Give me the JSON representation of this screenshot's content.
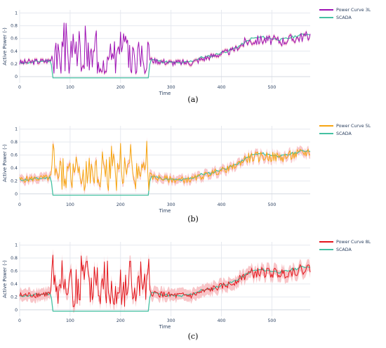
{
  "colors": {
    "scada": "#45c1a2",
    "band_3L": "#f2a5b9",
    "line_3L": "#9e12b4",
    "band_5L": "#f7b3b8",
    "line_5L": "#f6a512",
    "band_8L": "#f5b1b6",
    "line_8L": "#e3161c"
  },
  "chart_data": [
    {
      "type": "line",
      "caption": "(a)",
      "xlabel": "Time",
      "ylabel": "Active Power (-)",
      "xlim": [
        0,
        576
      ],
      "ylim": [
        -0.1,
        1.05
      ],
      "x_ticks": [
        0,
        100,
        200,
        300,
        400,
        500
      ],
      "y_ticks": [
        0.2,
        0.4,
        0.6,
        0.8,
        1
      ],
      "y_tick_labels": [
        "0.2",
        "0.4",
        "0.6",
        "0.8",
        "1"
      ],
      "zero_tick_label": "0",
      "grid": true,
      "legend_position": "top-right",
      "series": [
        {
          "name": "Power Curve 3L",
          "key": "3L",
          "seed": 3
        },
        {
          "name": "SCADA",
          "key": "scada"
        }
      ]
    },
    {
      "type": "line",
      "caption": "(b)",
      "xlabel": "Time",
      "ylabel": "Active Power (-)",
      "xlim": [
        0,
        576
      ],
      "ylim": [
        -0.1,
        1.05
      ],
      "x_ticks": [
        0,
        100,
        200,
        300,
        400,
        500
      ],
      "y_ticks": [
        0.2,
        0.4,
        0.6,
        0.8,
        1
      ],
      "y_tick_labels": [
        "0.2",
        "0.4",
        "0.6",
        "0.8",
        "1"
      ],
      "zero_tick_label": "0",
      "grid": true,
      "legend_position": "top-right",
      "series": [
        {
          "name": "Power Curve 5L",
          "key": "5L",
          "seed": 5
        },
        {
          "name": "SCADA",
          "key": "scada"
        }
      ]
    },
    {
      "type": "line",
      "caption": "(c)",
      "xlabel": "Time",
      "ylabel": "Active Power (-)",
      "xlim": [
        0,
        576
      ],
      "ylim": [
        -0.1,
        1.05
      ],
      "x_ticks": [
        0,
        100,
        200,
        300,
        400,
        500
      ],
      "y_ticks": [
        0.2,
        0.4,
        0.6,
        0.8,
        1
      ],
      "y_tick_labels": [
        "0.2",
        "0.4",
        "0.6",
        "0.8",
        "1"
      ],
      "zero_tick_label": "0",
      "grid": true,
      "legend_position": "top-right",
      "series": [
        {
          "name": "Power Curve 8L",
          "key": "8L",
          "seed": 8
        },
        {
          "name": "SCADA",
          "key": "scada"
        }
      ]
    }
  ],
  "scada_profile": {
    "x": [
      0,
      20,
      40,
      60,
      63,
      66,
      255,
      258,
      261,
      280,
      300,
      320,
      340,
      360,
      380,
      400,
      420,
      440,
      460,
      480,
      500,
      520,
      540,
      560,
      576
    ],
    "y": [
      0.22,
      0.22,
      0.24,
      0.25,
      0.2,
      -0.02,
      -0.02,
      0.2,
      0.27,
      0.24,
      0.22,
      0.21,
      0.24,
      0.3,
      0.32,
      0.38,
      0.42,
      0.5,
      0.6,
      0.62,
      0.6,
      0.58,
      0.62,
      0.66,
      0.67
    ]
  },
  "prediction_profile": {
    "x": [
      0,
      60,
      65,
      255,
      262,
      300,
      340,
      380,
      420,
      450,
      480,
      520,
      576
    ],
    "y": [
      0.22,
      0.25,
      0.3,
      0.3,
      0.26,
      0.22,
      0.22,
      0.32,
      0.4,
      0.55,
      0.58,
      0.56,
      0.65
    ]
  }
}
